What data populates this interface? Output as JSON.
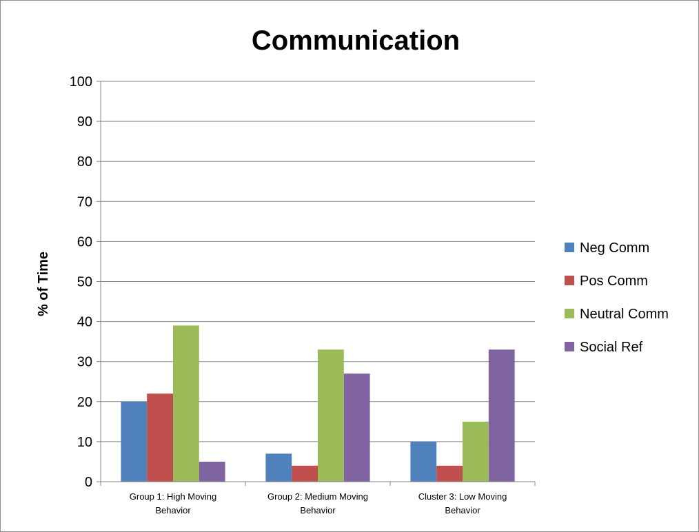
{
  "chart_data": {
    "type": "bar",
    "title": "Communication",
    "xlabel": "",
    "ylabel": "% of Time",
    "ylim": [
      0,
      100
    ],
    "yticks": [
      0,
      10,
      20,
      30,
      40,
      50,
      60,
      70,
      80,
      90,
      100
    ],
    "grid": true,
    "legend_position": "right",
    "categories": [
      [
        "Group 1: High Moving",
        "Behavior"
      ],
      [
        "Group 2: Medium Moving",
        "Behavior"
      ],
      [
        "Cluster 3: Low Moving",
        "Behavior"
      ]
    ],
    "series": [
      {
        "name": "Neg Comm",
        "color": "#4F81BD",
        "values": [
          20,
          7,
          10
        ]
      },
      {
        "name": "Pos Comm",
        "color": "#C0504D",
        "values": [
          22,
          4,
          4
        ]
      },
      {
        "name": "Neutral Comm",
        "color": "#9BBB59",
        "values": [
          39,
          33,
          15
        ]
      },
      {
        "name": "Social Ref",
        "color": "#8064A2",
        "values": [
          5,
          27,
          33
        ]
      }
    ]
  }
}
